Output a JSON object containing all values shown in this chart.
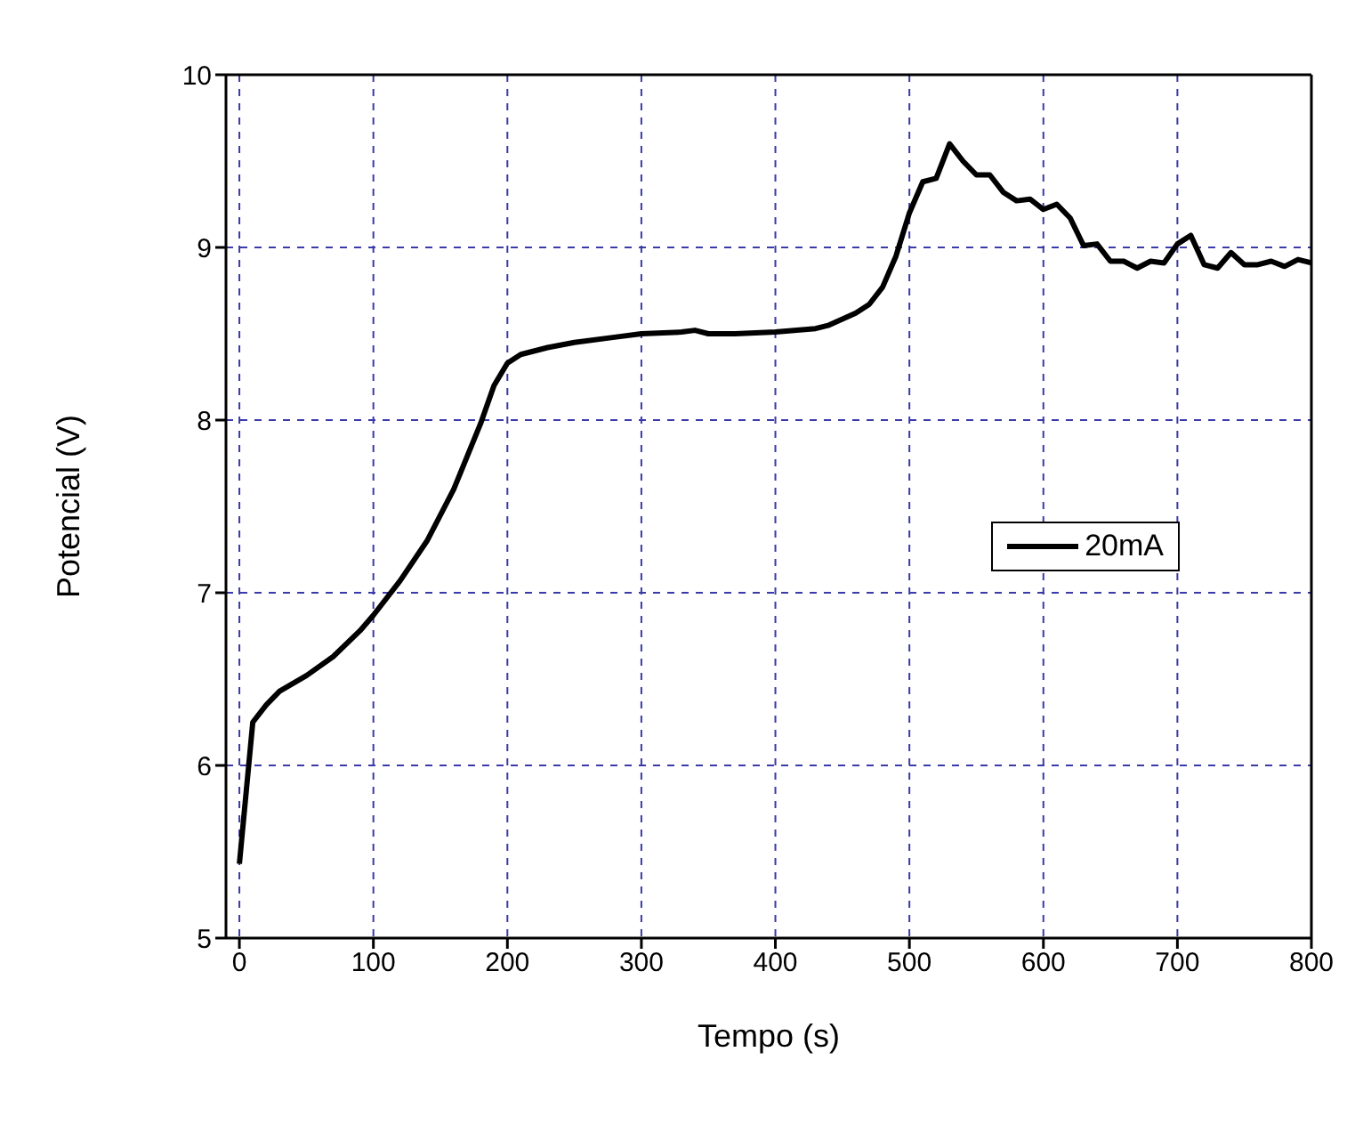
{
  "chart_data": {
    "type": "line",
    "xlabel": "Tempo (s)",
    "ylabel": "Potencial (V)",
    "xlim": [
      -10,
      800
    ],
    "xticks": [
      0,
      100,
      200,
      300,
      400,
      500,
      600,
      700,
      800
    ],
    "ylim": [
      5,
      10
    ],
    "yticks": [
      5,
      6,
      7,
      8,
      9,
      10
    ],
    "grid": true,
    "legend": "right",
    "marker": "none",
    "line_style": "solid",
    "x": [
      0,
      10,
      20,
      30,
      50,
      70,
      90,
      100,
      120,
      140,
      160,
      180,
      190,
      200,
      210,
      230,
      250,
      280,
      300,
      330,
      340,
      350,
      370,
      400,
      430,
      440,
      460,
      470,
      480,
      490,
      500,
      510,
      520,
      530,
      540,
      550,
      560,
      570,
      580,
      590,
      600,
      610,
      620,
      630,
      640,
      650,
      660,
      670,
      680,
      690,
      700,
      710,
      720,
      730,
      740,
      750,
      760,
      770,
      780,
      790,
      800
    ],
    "series": [
      {
        "name": "20mA",
        "color": "#000000",
        "values": [
          5.43,
          6.25,
          6.35,
          6.43,
          6.52,
          6.63,
          6.78,
          6.87,
          7.07,
          7.3,
          7.6,
          7.98,
          8.2,
          8.33,
          8.38,
          8.42,
          8.45,
          8.48,
          8.5,
          8.51,
          8.52,
          8.5,
          8.5,
          8.51,
          8.53,
          8.55,
          8.62,
          8.67,
          8.77,
          8.95,
          9.2,
          9.38,
          9.4,
          9.6,
          9.5,
          9.42,
          9.42,
          9.32,
          9.27,
          9.28,
          9.22,
          9.25,
          9.17,
          9.01,
          9.02,
          8.92,
          8.92,
          8.88,
          8.92,
          8.91,
          9.02,
          9.07,
          8.9,
          8.88,
          8.97,
          8.9,
          8.9,
          8.92,
          8.89,
          8.93,
          8.91
        ]
      }
    ]
  }
}
